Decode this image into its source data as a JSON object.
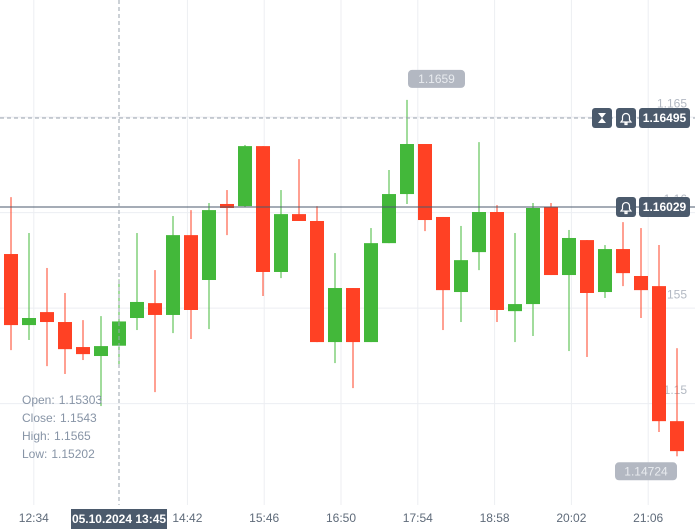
{
  "chart_data": {
    "type": "candlestick",
    "x": [
      735,
      750,
      765,
      780,
      795,
      810,
      825,
      840,
      855,
      870,
      885,
      900,
      915,
      930,
      945,
      960,
      975,
      990,
      1005,
      1020,
      1035,
      1050,
      1065,
      1080,
      1095,
      1110,
      1125,
      1140,
      1155,
      1170,
      1185,
      1200,
      1215,
      1230,
      1245,
      1260,
      1275,
      1290
    ],
    "open": [
      1.15783,
      1.15411,
      1.15479,
      1.15427,
      1.15296,
      1.15249,
      1.15303,
      1.15448,
      1.15526,
      1.15464,
      1.15882,
      1.15647,
      1.16045,
      1.16034,
      1.16348,
      1.15689,
      1.15992,
      1.15956,
      1.15322,
      1.15605,
      1.15322,
      1.1584,
      1.16097,
      1.16359,
      1.15977,
      1.15584,
      1.15793,
      1.16003,
      1.15484,
      1.15521,
      1.16029,
      1.15673,
      1.15856,
      1.15584,
      1.15809,
      1.15668,
      1.15615,
      1.14908
    ],
    "high": [
      1.16081,
      1.15893,
      1.1571,
      1.15579,
      1.15437,
      1.15458,
      1.1565,
      1.15893,
      1.15699,
      1.15982,
      1.16013,
      1.1605,
      1.16118,
      1.16354,
      1.16348,
      1.16118,
      1.1628,
      1.16034,
      1.15788,
      1.15605,
      1.15919,
      1.16223,
      1.1659,
      1.16359,
      1.15977,
      1.1593,
      1.16369,
      1.16039,
      1.15893,
      1.1605,
      1.1605,
      1.15909,
      1.15856,
      1.1583,
      1.1595,
      1.15919,
      1.1583,
      1.1529
    ],
    "low": [
      1.1528,
      1.15333,
      1.15196,
      1.15155,
      1.15228,
      1.14987,
      1.15202,
      1.15385,
      1.1506,
      1.15369,
      1.15338,
      1.1539,
      1.15882,
      1.16029,
      1.15563,
      1.15657,
      1.15956,
      1.15322,
      1.15212,
      1.15081,
      1.15322,
      1.1584,
      1.16045,
      1.15903,
      1.15385,
      1.15427,
      1.15699,
      1.15427,
      1.15322,
      1.15354,
      1.15673,
      1.15275,
      1.15244,
      1.15553,
      1.15615,
      1.15448,
      1.14851,
      1.14724
    ],
    "close": [
      1.15411,
      1.15448,
      1.15427,
      1.15285,
      1.15259,
      1.15301,
      1.1543,
      1.15532,
      1.15464,
      1.15882,
      1.1549,
      1.16013,
      1.16024,
      1.16348,
      1.15689,
      1.15992,
      1.15956,
      1.15322,
      1.15605,
      1.15322,
      1.1584,
      1.16097,
      1.16359,
      1.15961,
      1.15594,
      1.15751,
      1.16003,
      1.1549,
      1.15521,
      1.16024,
      1.15673,
      1.15867,
      1.15579,
      1.15809,
      1.15683,
      1.15594,
      1.14908,
      1.14751
    ],
    "up_color": "#43b83a",
    "down_color": "#ff4124",
    "xlim": [
      725.83,
      1305
    ],
    "xticks": [
      {
        "value": 754,
        "label": "12:34"
      },
      {
        "value": 882,
        "label": "14:42"
      },
      {
        "value": 946,
        "label": "15:46"
      },
      {
        "value": 1010,
        "label": "16:50"
      },
      {
        "value": 1074,
        "label": "17:54"
      },
      {
        "value": 1138,
        "label": "18:58"
      },
      {
        "value": 1202,
        "label": "20:02"
      },
      {
        "value": 1266,
        "label": "21:06"
      }
    ],
    "ylim": [
      1.14469,
      1.17113
    ],
    "yticks": [
      1.15,
      1.155,
      1.16,
      1.165
    ],
    "grid": true,
    "current_price": 1.16029,
    "crosshair": {
      "x": 825,
      "label": "05.10.2024 13:45",
      "price": 1.16495
    },
    "readout": {
      "labels": [
        "Open:",
        "Close:",
        "High:",
        "Low:"
      ]
    }
  }
}
